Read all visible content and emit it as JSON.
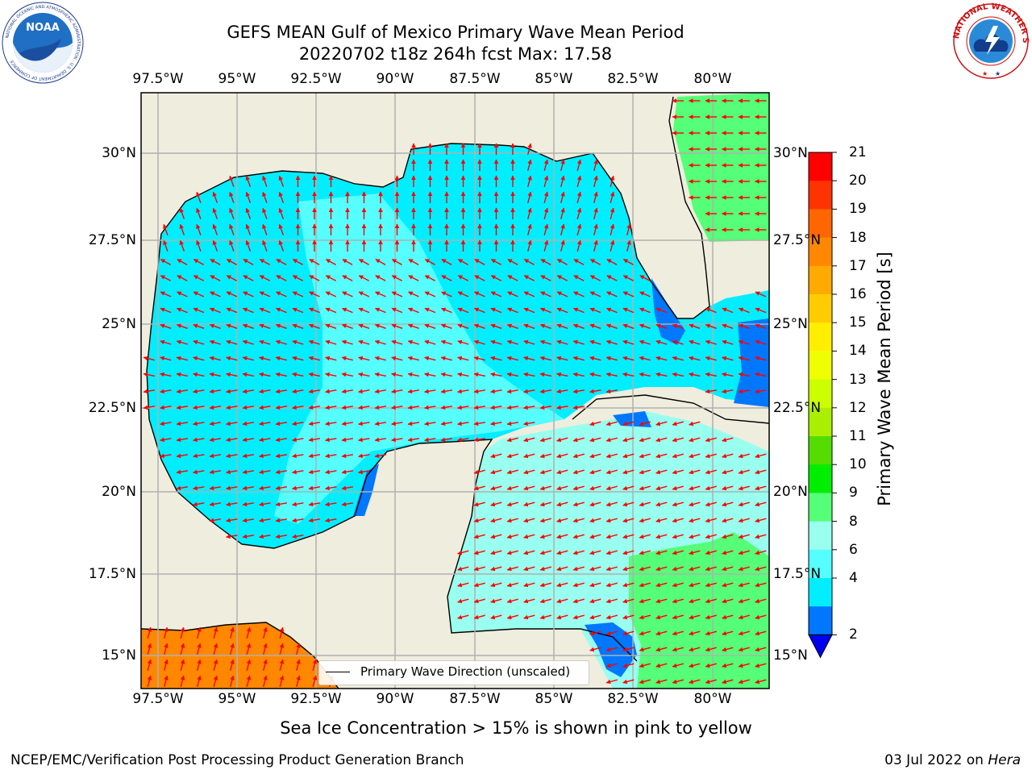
{
  "title_line1": "GEFS MEAN Gulf of Mexico Primary Wave Mean Period",
  "title_line2": "20220702 t18z 264h fcst   Max: 17.58",
  "lon_ticks": [
    "97.5°W",
    "95°W",
    "92.5°W",
    "90°W",
    "87.5°W",
    "85°W",
    "82.5°W",
    "80°W"
  ],
  "lat_ticks": [
    "30°N",
    "27.5°N",
    "25°N",
    "22.5°N",
    "20°N",
    "17.5°N",
    "15°N"
  ],
  "colorbar": {
    "label": "Primary Wave Mean Period [s]",
    "ticks": [
      "21",
      "20",
      "19",
      "18",
      "17",
      "16",
      "15",
      "14",
      "13",
      "12",
      "11",
      "10",
      "9",
      "8",
      "6",
      "4",
      "2"
    ],
    "colors": [
      "#ff0000",
      "#ff3300",
      "#ff6600",
      "#ff8800",
      "#ffaa00",
      "#ffcc00",
      "#ffee00",
      "#f0ff00",
      "#ccff00",
      "#aaee00",
      "#55dd00",
      "#00ee00",
      "#55ff77",
      "#99ffee",
      "#55ffff",
      "#00eeff",
      "#0077ff"
    ],
    "extend_color": "#0000ee"
  },
  "legend": {
    "text": "Primary Wave Direction (unscaled)"
  },
  "subtitle": "Sea Ice Concentration > 15% is shown in pink to yellow",
  "footer_left": "NCEP/EMC/Verification Post Processing Product Generation Branch",
  "footer_right_prefix": "03 Jul 2022 on ",
  "footer_right_host": "Hera",
  "logos": {
    "noaa_text": "NOAA",
    "noaa_ring_text": "NATIONAL OCEANIC AND ATMOSPHERIC ADMINISTRATION · U.S. DEPARTMENT OF COMMERCE",
    "nws_ring_text": "NATIONAL WEATHER SERVICE"
  },
  "map_colors": {
    "land": "#efeddd",
    "sea_main": "#00eeff",
    "sea_mid": "#55ffff",
    "sea_light": "#99ffee",
    "sea_green": "#55ff77",
    "sea_orange": "#ff8800",
    "sea_blue": "#0077ff",
    "arrow": "#ff0000",
    "grid": "#b0b0b0"
  }
}
